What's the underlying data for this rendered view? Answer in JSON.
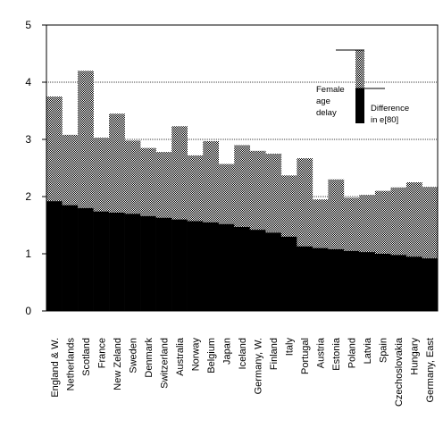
{
  "chart_data": {
    "type": "bar",
    "stacked": true,
    "categories": [
      "England & W.",
      "Netherlands",
      "Scotland",
      "France",
      "New Zeland",
      "Sweden",
      "Denmark",
      "Switzerland",
      "Australia",
      "Norway",
      "Belgium",
      "Japan",
      "Iceland",
      "Germany, W.",
      "Finland",
      "Italy",
      "Portugal",
      "Austria",
      "Estonia",
      "Poland",
      "Latvia",
      "Spain",
      "Czechoslovakia",
      "Hungary",
      "Germany, East"
    ],
    "series": [
      {
        "name": "Female age delay",
        "fill": "solid-black",
        "values": [
          1.92,
          1.85,
          1.8,
          1.74,
          1.72,
          1.7,
          1.66,
          1.63,
          1.6,
          1.57,
          1.55,
          1.52,
          1.47,
          1.42,
          1.37,
          1.3,
          1.13,
          1.1,
          1.08,
          1.05,
          1.03,
          1.0,
          0.98,
          0.95,
          0.92
        ]
      },
      {
        "name": "Difference in e[80]",
        "fill": "dotted-gray",
        "values": [
          1.83,
          1.23,
          2.4,
          1.29,
          1.73,
          1.28,
          1.19,
          1.15,
          1.63,
          1.15,
          1.42,
          1.05,
          1.43,
          1.38,
          1.38,
          1.07,
          1.54,
          0.85,
          1.22,
          0.93,
          1.0,
          1.1,
          1.18,
          1.3,
          1.25
        ]
      }
    ],
    "title": "",
    "xlabel": "",
    "ylabel": "",
    "ylim": [
      0,
      5
    ],
    "yticks": [
      "0",
      "1",
      "2",
      "3",
      "4",
      "5"
    ],
    "reference_lines": [
      2,
      3,
      4
    ],
    "grid": false,
    "legend_placement": "top-right",
    "legend": {
      "female_label_lines": [
        "Female",
        "age",
        "delay"
      ],
      "difference_label_lines": [
        "Difference",
        "in e[80]"
      ]
    }
  }
}
